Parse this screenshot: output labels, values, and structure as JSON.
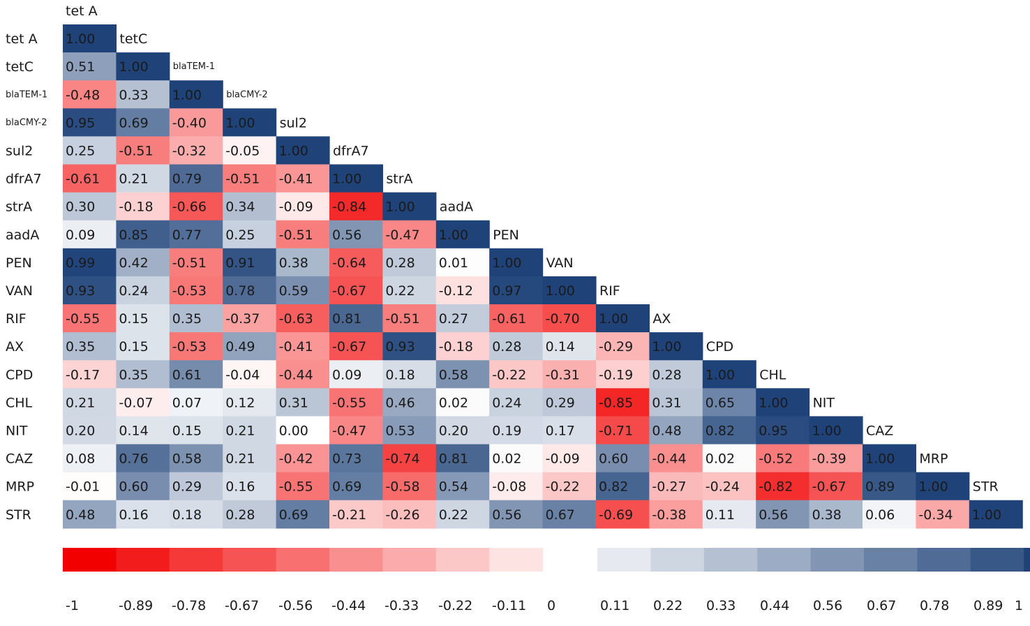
{
  "chart_data": {
    "type": "heatmap",
    "title": "",
    "labels": [
      "tet A",
      "tetC",
      "blaTEM-1",
      "blaCMY-2",
      "sul2",
      "dfrA7",
      "strA",
      "aadA",
      "PEN",
      "VAN",
      "RIF",
      "AX",
      "CPD",
      "CHL",
      "NIT",
      "CAZ",
      "MRP",
      "STR"
    ],
    "small_labels": [
      "blaTEM-1",
      "blaCMY-2"
    ],
    "matrix": [
      [
        "1.00"
      ],
      [
        "0.51",
        "1.00"
      ],
      [
        "-0.48",
        "0.33",
        "1.00"
      ],
      [
        "0.95",
        "0.69",
        "-0.40",
        "1.00"
      ],
      [
        "0.25",
        "-0.51",
        "-0.32",
        "-0.05",
        "1.00"
      ],
      [
        "-0.61",
        "0.21",
        "0.79",
        "-0.51",
        "-0.41",
        "1.00"
      ],
      [
        "0.30",
        "-0.18",
        "-0.66",
        "0.34",
        "-0.09",
        "-0.84",
        "1.00"
      ],
      [
        "0.09",
        "0.85",
        "0.77",
        "0.25",
        "-0.51",
        "0.56",
        "-0.47",
        "1.00"
      ],
      [
        "0.99",
        "0.42",
        "-0.51",
        "0.91",
        "0.38",
        "-0.64",
        "0.28",
        "0.01",
        "1.00"
      ],
      [
        "0.93",
        "0.24",
        "-0.53",
        "0.78",
        "0.59",
        "-0.67",
        "0.22",
        "-0.12",
        "0.97",
        "1.00"
      ],
      [
        "-0.55",
        "0.15",
        "0.35",
        "-0.37",
        "-0.63",
        "0.81",
        "-0.51",
        "0.27",
        "-0.61",
        "-0.70",
        "1.00"
      ],
      [
        "0.35",
        "0.15",
        "-0.53",
        "0.49",
        "-0.41",
        "-0.67",
        "0.93",
        "-0.18",
        "0.28",
        "0.14",
        "-0.29",
        "1.00"
      ],
      [
        "-0.17",
        "0.35",
        "0.61",
        "-0.04",
        "-0.44",
        "0.09",
        "0.18",
        "0.58",
        "-0.22",
        "-0.31",
        "-0.19",
        "0.28",
        "1.00"
      ],
      [
        "0.21",
        "-0.07",
        "0.07",
        "0.12",
        "0.31",
        "-0.55",
        "0.46",
        "0.02",
        "0.24",
        "0.29",
        "-0.85",
        "0.31",
        "0.65",
        "1.00"
      ],
      [
        "0.20",
        "0.14",
        "0.15",
        "0.21",
        "0.00",
        "-0.47",
        "0.53",
        "0.20",
        "0.19",
        "0.17",
        "-0.71",
        "0.48",
        "0.82",
        "0.95",
        "1.00"
      ],
      [
        "0.08",
        "0.76",
        "0.58",
        "0.21",
        "-0.42",
        "0.73",
        "-0.74",
        "0.81",
        "0.02",
        "-0.09",
        "0.60",
        "-0.44",
        "0.02",
        "-0.52",
        "-0.39",
        "1.00"
      ],
      [
        "-0.01",
        "0.60",
        "0.29",
        "0.16",
        "-0.55",
        "0.69",
        "-0.58",
        "0.54",
        "-0.08",
        "-0.22",
        "0.82",
        "-0.27",
        "-0.24",
        "-0.82",
        "-0.67",
        "0.89",
        "1.00"
      ],
      [
        "0.48",
        "0.16",
        "0.18",
        "0.28",
        "0.69",
        "-0.21",
        "-0.26",
        "0.22",
        "0.56",
        "0.67",
        "-0.69",
        "-0.38",
        "0.11",
        "0.56",
        "0.38",
        "0.06",
        "-0.34",
        "1.00"
      ]
    ],
    "value_range": [
      -1,
      1
    ],
    "color_negative": "#f20000",
    "color_zero": "#ffffff",
    "color_positive": "#1f4379",
    "legend": {
      "negative_ticks": [
        "-1",
        "-0.89",
        "-0.78",
        "-0.67",
        "-0.56",
        "-0.44",
        "-0.33",
        "-0.22",
        "-0.11"
      ],
      "zero_tick": "0",
      "positive_ticks": [
        "0.11",
        "0.22",
        "0.33",
        "0.44",
        "0.56",
        "0.67",
        "0.78",
        "0.89"
      ],
      "max_tick": "1",
      "negative_values": [
        -1,
        -0.89,
        -0.78,
        -0.67,
        -0.56,
        -0.44,
        -0.33,
        -0.22,
        -0.11
      ],
      "positive_values": [
        0.11,
        0.22,
        0.33,
        0.44,
        0.56,
        0.67,
        0.78,
        0.89,
        1
      ]
    }
  }
}
